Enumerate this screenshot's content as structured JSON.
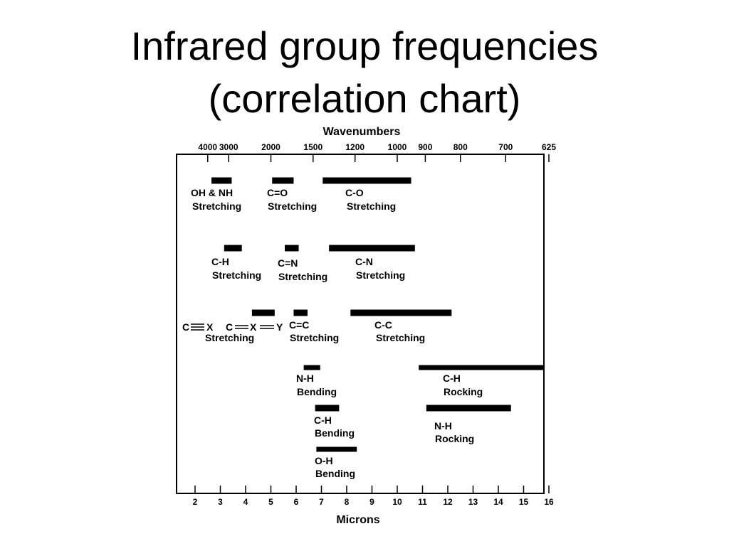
{
  "slide": {
    "title_line1": "Infrared group frequencies",
    "title_line2": "(correlation chart)"
  },
  "chart_data": {
    "type": "range-bar",
    "top_axis_title": "Wavenumbers",
    "bottom_axis_title": "Microns",
    "x_range_microns": [
      1.25,
      16
    ],
    "top_ticks": [
      {
        "label": "4000",
        "micron": 2.5
      },
      {
        "label": "3000",
        "micron": 3.33
      },
      {
        "label": "2000",
        "micron": 5.0
      },
      {
        "label": "1500",
        "micron": 6.67
      },
      {
        "label": "1200",
        "micron": 8.33
      },
      {
        "label": "1000",
        "micron": 10.0
      },
      {
        "label": "900",
        "micron": 11.11
      },
      {
        "label": "800",
        "micron": 12.5
      },
      {
        "label": "700",
        "micron": 14.29
      },
      {
        "label": "625",
        "micron": 16.0
      }
    ],
    "bottom_ticks": [
      2,
      3,
      4,
      5,
      6,
      7,
      8,
      9,
      10,
      11,
      12,
      13,
      14,
      15,
      16
    ],
    "bands": [
      {
        "name": "OH & NH stretching",
        "start": 2.65,
        "end": 3.45,
        "row": 1
      },
      {
        "name": "C=O stretching",
        "start": 5.05,
        "end": 5.9,
        "row": 1
      },
      {
        "name": "C-O stretching",
        "start": 7.05,
        "end": 10.55,
        "row": 1
      },
      {
        "name": "C-H stretching",
        "start": 3.15,
        "end": 3.85,
        "row": 2
      },
      {
        "name": "C=N stretching",
        "start": 5.55,
        "end": 6.1,
        "row": 2
      },
      {
        "name": "C-N stretching",
        "start": 7.3,
        "end": 10.7,
        "row": 2
      },
      {
        "name": "C≡X / C=X=Y stretching",
        "start": 4.25,
        "end": 5.15,
        "row": 3
      },
      {
        "name": "C=C stretching",
        "start": 5.9,
        "end": 6.45,
        "row": 3
      },
      {
        "name": "C-C stretching",
        "start": 8.15,
        "end": 12.15,
        "row": 3
      },
      {
        "name": "N-H bending",
        "start": 6.3,
        "end": 6.95,
        "row": 4
      },
      {
        "name": "C-H rocking",
        "start": 10.85,
        "end": 16.0,
        "row": 4
      },
      {
        "name": "C-H bending",
        "start": 6.75,
        "end": 7.7,
        "row": 5
      },
      {
        "name": "N-H rocking",
        "start": 11.15,
        "end": 14.5,
        "row": 5
      },
      {
        "name": "O-H bending",
        "start": 6.8,
        "end": 8.4,
        "row": 6
      }
    ]
  },
  "labels": {
    "oh_nh_1": "OH & NH",
    "stretching_a": "Stretching",
    "co_double_1": "C=O",
    "stretching_b": "Stretching",
    "co_single_1": "C-O",
    "stretching_c": "Stretching",
    "ch_1": "C-H",
    "stretching_d": "Stretching",
    "cn_double_1": "C=N",
    "stretching_e": "Stretching",
    "cn_single_1": "C-N",
    "stretching_f": "Stretching",
    "c_triple_c": "C",
    "c_triple_x": "X",
    "c_double_c": "C",
    "c_double_x": "X",
    "c_double_y": "Y",
    "stretching_g": "Stretching",
    "cc_double_1": "C=C",
    "stretching_h": "Stretching",
    "cc_single_1": "C-C",
    "stretching_i": "Stretching",
    "nh_1": "N-H",
    "bending_a": "Bending",
    "ch_rock_1": "C-H",
    "rocking_a": "Rocking",
    "ch_bend_1": "C-H",
    "bending_b": "Bending",
    "nh_rock_1": "N-H",
    "rocking_b": "Rocking",
    "oh_1": "O-H",
    "bending_c": "Bending"
  }
}
